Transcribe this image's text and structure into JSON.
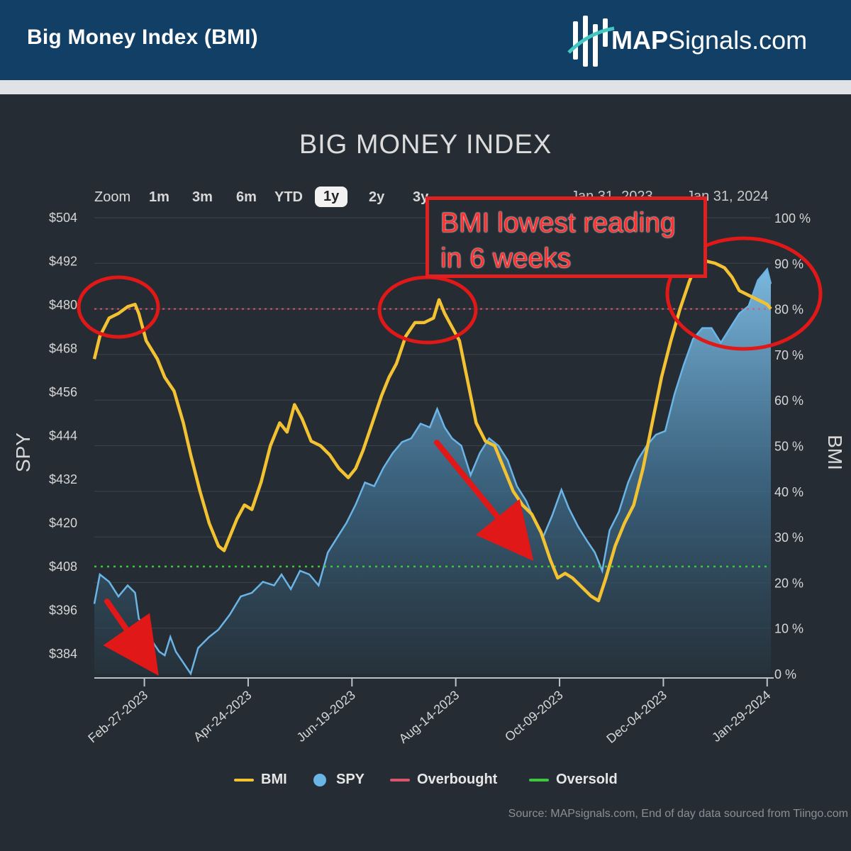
{
  "header": {
    "title": "Big Money Index (BMI)",
    "brand_bold": "MAP",
    "brand_rest": "Signals.com",
    "brand_icon": "bar-chart-logo-icon"
  },
  "toolbar": {
    "zoom_label": "Zoom",
    "zoom_options": [
      "1m",
      "3m",
      "6m",
      "YTD",
      "1y",
      "2y",
      "3y"
    ],
    "active_zoom": "1y",
    "range_from": "Jan 31, 2023",
    "range_arrow": "→",
    "range_to": "Jan 31, 2024"
  },
  "annotation": {
    "line1": "BMI lowest reading",
    "line2": "in 6 weeks",
    "color": "#e02020"
  },
  "source": "Source: MAPsignals.com, End of day data sourced from Tiingo.com",
  "chart_data": {
    "type": "line",
    "title": "BIG MONEY INDEX",
    "xlabel": "",
    "ylabel_left": "SPY",
    "ylabel_right": "BMI",
    "x_start": "2023-01-31",
    "x_end": "2024-01-31",
    "x_ticks": [
      "Feb-27-2023",
      "Apr-24-2023",
      "Jun-19-2023",
      "Aug-14-2023",
      "Oct-09-2023",
      "Dec-04-2023",
      "Jan-29-2024"
    ],
    "y_left_ticks": [
      "$504",
      "$492",
      "$480",
      "$468",
      "$456",
      "$444",
      "$432",
      "$420",
      "$408",
      "$396",
      "$384"
    ],
    "y_left_range": [
      380,
      504
    ],
    "y_right_ticks": [
      "100 %",
      "90 %",
      "80 %",
      "70 %",
      "60 %",
      "50 %",
      "40 %",
      "30 %",
      "20 %",
      "10 %",
      "0 %"
    ],
    "y_right_range": [
      0,
      100
    ],
    "overbought_level": 80,
    "oversold_level": 23.5,
    "colors": {
      "bmi": "#f2c232",
      "spy": "#6ab4e6",
      "overbought": "#d9566e",
      "oversold": "#3dc83d"
    },
    "series": [
      {
        "name": "BMI",
        "axis": "right",
        "points": [
          [
            "2023-01-31",
            69
          ],
          [
            "2023-02-03",
            74
          ],
          [
            "2023-02-08",
            78
          ],
          [
            "2023-02-13",
            79
          ],
          [
            "2023-02-18",
            80.5
          ],
          [
            "2023-02-22",
            81
          ],
          [
            "2023-02-24",
            79
          ],
          [
            "2023-02-28",
            73
          ],
          [
            "2023-03-06",
            69
          ],
          [
            "2023-03-10",
            65
          ],
          [
            "2023-03-15",
            62
          ],
          [
            "2023-03-20",
            55
          ],
          [
            "2023-03-24",
            48
          ],
          [
            "2023-03-29",
            40
          ],
          [
            "2023-04-03",
            33
          ],
          [
            "2023-04-08",
            28
          ],
          [
            "2023-04-11",
            27
          ],
          [
            "2023-04-14",
            30
          ],
          [
            "2023-04-18",
            34
          ],
          [
            "2023-04-22",
            37
          ],
          [
            "2023-04-26",
            36
          ],
          [
            "2023-05-01",
            42
          ],
          [
            "2023-05-06",
            50
          ],
          [
            "2023-05-11",
            55
          ],
          [
            "2023-05-15",
            53
          ],
          [
            "2023-05-19",
            59
          ],
          [
            "2023-05-23",
            56
          ],
          [
            "2023-05-28",
            51
          ],
          [
            "2023-06-02",
            50
          ],
          [
            "2023-06-07",
            48
          ],
          [
            "2023-06-12",
            45
          ],
          [
            "2023-06-17",
            43
          ],
          [
            "2023-06-21",
            45
          ],
          [
            "2023-06-25",
            49
          ],
          [
            "2023-06-30",
            55
          ],
          [
            "2023-07-05",
            61
          ],
          [
            "2023-07-09",
            65
          ],
          [
            "2023-07-13",
            68
          ],
          [
            "2023-07-18",
            74
          ],
          [
            "2023-07-23",
            77
          ],
          [
            "2023-07-28",
            77
          ],
          [
            "2023-08-02",
            78
          ],
          [
            "2023-08-05",
            82
          ],
          [
            "2023-08-08",
            79
          ],
          [
            "2023-08-12",
            76
          ],
          [
            "2023-08-16",
            73
          ],
          [
            "2023-08-21",
            63
          ],
          [
            "2023-08-25",
            55
          ],
          [
            "2023-08-30",
            51
          ],
          [
            "2023-09-04",
            50
          ],
          [
            "2023-09-09",
            45
          ],
          [
            "2023-09-14",
            40
          ],
          [
            "2023-09-19",
            37
          ],
          [
            "2023-09-24",
            35
          ],
          [
            "2023-09-29",
            31
          ],
          [
            "2023-10-04",
            25
          ],
          [
            "2023-10-08",
            21
          ],
          [
            "2023-10-12",
            22
          ],
          [
            "2023-10-16",
            21
          ],
          [
            "2023-10-21",
            19
          ],
          [
            "2023-10-26",
            17
          ],
          [
            "2023-10-30",
            16
          ],
          [
            "2023-11-03",
            21
          ],
          [
            "2023-11-08",
            28
          ],
          [
            "2023-11-13",
            33
          ],
          [
            "2023-11-18",
            37
          ],
          [
            "2023-11-23",
            45
          ],
          [
            "2023-11-28",
            55
          ],
          [
            "2023-12-03",
            65
          ],
          [
            "2023-12-08",
            73
          ],
          [
            "2023-12-13",
            80
          ],
          [
            "2023-12-18",
            86
          ],
          [
            "2023-12-22",
            90
          ],
          [
            "2023-12-27",
            90.5
          ],
          [
            "2024-01-01",
            90
          ],
          [
            "2024-01-06",
            89
          ],
          [
            "2024-01-10",
            87
          ],
          [
            "2024-01-14",
            84
          ],
          [
            "2024-01-19",
            83
          ],
          [
            "2024-01-24",
            82
          ],
          [
            "2024-01-29",
            81
          ],
          [
            "2024-01-31",
            80
          ]
        ]
      },
      {
        "name": "SPY",
        "axis": "left",
        "points": [
          [
            "2023-01-31",
            399
          ],
          [
            "2023-02-03",
            407
          ],
          [
            "2023-02-08",
            405
          ],
          [
            "2023-02-13",
            401
          ],
          [
            "2023-02-18",
            404
          ],
          [
            "2023-02-22",
            402
          ],
          [
            "2023-02-24",
            395
          ],
          [
            "2023-02-28",
            392
          ],
          [
            "2023-03-03",
            389
          ],
          [
            "2023-03-07",
            386
          ],
          [
            "2023-03-10",
            385
          ],
          [
            "2023-03-13",
            390
          ],
          [
            "2023-03-16",
            386
          ],
          [
            "2023-03-20",
            383
          ],
          [
            "2023-03-24",
            380
          ],
          [
            "2023-03-28",
            387
          ],
          [
            "2023-04-03",
            390
          ],
          [
            "2023-04-08",
            392
          ],
          [
            "2023-04-14",
            396
          ],
          [
            "2023-04-20",
            401
          ],
          [
            "2023-04-26",
            402
          ],
          [
            "2023-05-02",
            405
          ],
          [
            "2023-05-08",
            404
          ],
          [
            "2023-05-12",
            407
          ],
          [
            "2023-05-17",
            403
          ],
          [
            "2023-05-22",
            408
          ],
          [
            "2023-05-27",
            407
          ],
          [
            "2023-06-01",
            404
          ],
          [
            "2023-06-06",
            413
          ],
          [
            "2023-06-11",
            417
          ],
          [
            "2023-06-16",
            421
          ],
          [
            "2023-06-21",
            426
          ],
          [
            "2023-06-26",
            432
          ],
          [
            "2023-07-01",
            431
          ],
          [
            "2023-07-06",
            436
          ],
          [
            "2023-07-11",
            440
          ],
          [
            "2023-07-16",
            443
          ],
          [
            "2023-07-21",
            444
          ],
          [
            "2023-07-26",
            448
          ],
          [
            "2023-07-31",
            447
          ],
          [
            "2023-08-04",
            452
          ],
          [
            "2023-08-08",
            447
          ],
          [
            "2023-08-12",
            444
          ],
          [
            "2023-08-17",
            442
          ],
          [
            "2023-08-22",
            434
          ],
          [
            "2023-08-27",
            440
          ],
          [
            "2023-09-01",
            444
          ],
          [
            "2023-09-06",
            442
          ],
          [
            "2023-09-11",
            438
          ],
          [
            "2023-09-16",
            431
          ],
          [
            "2023-09-21",
            427
          ],
          [
            "2023-09-26",
            421
          ],
          [
            "2023-09-30",
            417
          ],
          [
            "2023-10-05",
            423
          ],
          [
            "2023-10-10",
            430
          ],
          [
            "2023-10-14",
            425
          ],
          [
            "2023-10-19",
            420
          ],
          [
            "2023-10-24",
            416
          ],
          [
            "2023-10-28",
            413
          ],
          [
            "2023-11-01",
            408
          ],
          [
            "2023-11-05",
            419
          ],
          [
            "2023-11-10",
            424
          ],
          [
            "2023-11-15",
            432
          ],
          [
            "2023-11-20",
            438
          ],
          [
            "2023-11-25",
            442
          ],
          [
            "2023-11-30",
            445
          ],
          [
            "2023-12-05",
            446
          ],
          [
            "2023-12-10",
            456
          ],
          [
            "2023-12-15",
            464
          ],
          [
            "2023-12-20",
            471
          ],
          [
            "2023-12-25",
            474
          ],
          [
            "2023-12-30",
            474
          ],
          [
            "2024-01-04",
            470
          ],
          [
            "2024-01-09",
            474
          ],
          [
            "2024-01-14",
            478
          ],
          [
            "2024-01-19",
            480
          ],
          [
            "2024-01-24",
            487
          ],
          [
            "2024-01-29",
            490
          ],
          [
            "2024-01-31",
            486
          ]
        ]
      }
    ]
  }
}
